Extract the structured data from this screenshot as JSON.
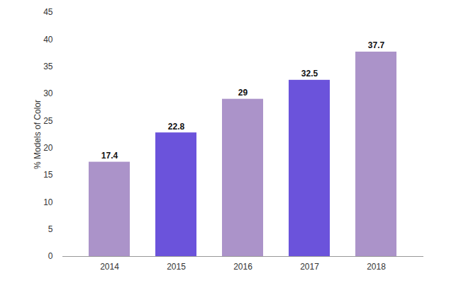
{
  "chart_data": {
    "type": "bar",
    "y_label": "% Models of Color",
    "categories": [
      "2014",
      "2015",
      "2016",
      "2017",
      "2018"
    ],
    "values": [
      17.4,
      22.8,
      29,
      32.5,
      37.7
    ],
    "colors": [
      "#ab93c9",
      "#6b53db",
      "#ab93c9",
      "#6b53db",
      "#ab93c9"
    ],
    "ylim": [
      0,
      45
    ],
    "yticks": [
      0,
      5,
      10,
      15,
      20,
      25,
      30,
      35,
      40,
      45
    ],
    "grid": false,
    "data_labels": true
  }
}
